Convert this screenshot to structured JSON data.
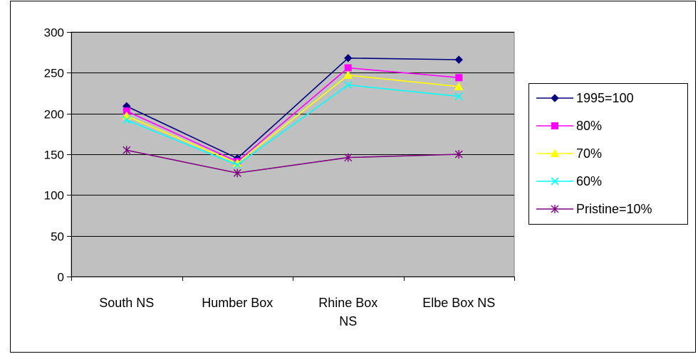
{
  "chart_data": {
    "type": "line",
    "title": "",
    "xlabel": "",
    "ylabel": "",
    "categories": [
      "South NS",
      "Humber Box",
      "Rhine Box NS",
      "Elbe Box NS"
    ],
    "category_lines": [
      [
        "South NS"
      ],
      [
        "Humber Box"
      ],
      [
        "Rhine Box",
        "NS"
      ],
      [
        "Elbe Box NS"
      ]
    ],
    "ylim": [
      0,
      300
    ],
    "yticks": [
      0,
      50,
      100,
      150,
      200,
      250,
      300
    ],
    "grid": true,
    "legend_position": "right",
    "plot_background": "#c0c0c0",
    "series": [
      {
        "name": "1995=100",
        "values": [
          209,
          145,
          268,
          266
        ],
        "color": "#000080",
        "marker": "diamond"
      },
      {
        "name": "80%",
        "values": [
          203,
          141,
          256,
          244
        ],
        "color": "#ff00ff",
        "marker": "square"
      },
      {
        "name": "70%",
        "values": [
          197,
          139,
          247,
          233
        ],
        "color": "#ffff00",
        "marker": "triangle"
      },
      {
        "name": "60%",
        "values": [
          192,
          137,
          235,
          221
        ],
        "color": "#00ffff",
        "marker": "x"
      },
      {
        "name": "Pristine=10%",
        "values": [
          155,
          127,
          146,
          150
        ],
        "color": "#800080",
        "marker": "star"
      }
    ]
  }
}
